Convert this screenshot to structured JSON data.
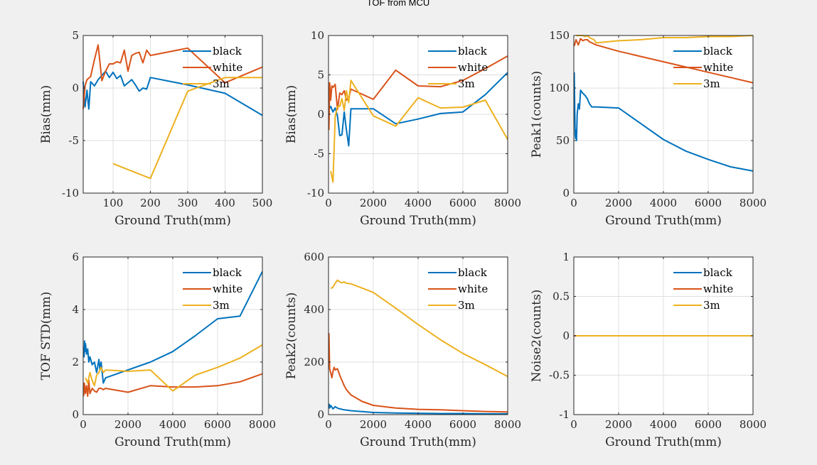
{
  "figure_title": "TOF from MCU",
  "colors": {
    "background": "#f0f0f0",
    "axes": "#ffffff",
    "grid": "#dfdfdf",
    "black": "#0072BD",
    "white": "#D95319",
    "3m": "#EDB120"
  },
  "chart_data": [
    {
      "type": "line",
      "title": "",
      "xlabel": "Ground Truth(mm)",
      "ylabel": "Bias(mm)",
      "xlim": [
        20,
        500
      ],
      "ylim": [
        -10,
        5
      ],
      "xticks": [
        100,
        200,
        300,
        400,
        500
      ],
      "yticks": [
        -10,
        -5,
        0,
        5
      ],
      "grid": true,
      "legend": "top-right",
      "series": [
        {
          "name": "black",
          "x": [
            20,
            25,
            30,
            35,
            40,
            50,
            60,
            70,
            80,
            90,
            100,
            110,
            120,
            130,
            140,
            150,
            160,
            170,
            180,
            190,
            200,
            300,
            400,
            500
          ],
          "y": [
            0.6,
            -1.8,
            -0.2,
            -2.0,
            0.6,
            0.2,
            0.8,
            1.2,
            1.6,
            1.0,
            1.5,
            0.9,
            1.2,
            0.2,
            0.5,
            0.8,
            0.3,
            -0.3,
            0.0,
            -0.1,
            1.0,
            0.3,
            -0.5,
            -2.6
          ]
        },
        {
          "name": "white",
          "x": [
            20,
            25,
            30,
            40,
            50,
            60,
            70,
            80,
            90,
            100,
            110,
            120,
            130,
            140,
            150,
            160,
            170,
            180,
            190,
            200,
            300,
            400,
            500
          ],
          "y": [
            -2.0,
            0.2,
            0.8,
            1.1,
            2.7,
            4.1,
            0.7,
            1.6,
            2.3,
            2.3,
            2.5,
            2.4,
            3.6,
            1.6,
            3.1,
            3.3,
            3.4,
            2.4,
            3.6,
            3.1,
            3.8,
            0.5,
            2.0
          ]
        },
        {
          "name": "3m",
          "x": [
            100,
            200,
            300,
            400,
            500
          ],
          "y": [
            -7.2,
            -8.6,
            -0.3,
            1.0,
            1.0
          ]
        }
      ]
    },
    {
      "type": "line",
      "title": "",
      "xlabel": "Ground Truth(mm)",
      "ylabel": "Bias(mm)",
      "xlim": [
        0,
        8000
      ],
      "ylim": [
        -10,
        10
      ],
      "xticks": [
        0,
        2000,
        4000,
        6000,
        8000
      ],
      "yticks": [
        -10,
        -5,
        0,
        5,
        10
      ],
      "grid": true,
      "legend": "top-right",
      "series": [
        {
          "name": "black",
          "x": [
            20,
            100,
            200,
            300,
            400,
            500,
            600,
            700,
            800,
            900,
            1000,
            2000,
            3000,
            4000,
            5000,
            6000,
            7000,
            8000
          ],
          "y": [
            0.6,
            1.0,
            0.3,
            0.8,
            -0.2,
            -2.7,
            -2.6,
            0.3,
            -2.0,
            -4.0,
            0.7,
            0.7,
            -1.2,
            -0.6,
            0.1,
            0.3,
            2.5,
            5.3
          ]
        },
        {
          "name": "white",
          "x": [
            20,
            50,
            100,
            150,
            200,
            300,
            400,
            500,
            600,
            700,
            800,
            900,
            1000,
            2000,
            3000,
            4000,
            5000,
            6000,
            7000,
            8000
          ],
          "y": [
            -2.0,
            4.0,
            1.8,
            3.6,
            3.4,
            3.8,
            0.6,
            2.7,
            2.5,
            3.0,
            1.8,
            2.0,
            3.2,
            1.9,
            5.6,
            3.6,
            3.5,
            4.3,
            5.8,
            7.4
          ]
        },
        {
          "name": "3m",
          "x": [
            100,
            200,
            300,
            400,
            500,
            600,
            700,
            800,
            900,
            1000,
            2000,
            3000,
            4000,
            5000,
            6000,
            7000,
            8000
          ],
          "y": [
            -7.2,
            -8.6,
            -0.3,
            1.0,
            1.0,
            2.0,
            0.5,
            3.0,
            1.5,
            4.3,
            -0.2,
            -1.5,
            2.1,
            0.8,
            0.9,
            1.8,
            -3.2
          ]
        }
      ]
    },
    {
      "type": "line",
      "title": "",
      "xlabel": "Ground Truth(mm)",
      "ylabel": "Peak1(counts)",
      "xlim": [
        0,
        8000
      ],
      "ylim": [
        0,
        150
      ],
      "xticks": [
        0,
        2000,
        4000,
        6000,
        8000
      ],
      "yticks": [
        0,
        50,
        100,
        150
      ],
      "grid": true,
      "legend": "top-right",
      "series": [
        {
          "name": "black",
          "x": [
            20,
            40,
            60,
            80,
            100,
            120,
            150,
            200,
            250,
            300,
            400,
            500,
            600,
            700,
            800,
            1000,
            2000,
            3000,
            4000,
            5000,
            6000,
            7000,
            8000
          ],
          "y": [
            115,
            80,
            55,
            52,
            60,
            50,
            75,
            85,
            80,
            98,
            95,
            93,
            90,
            85,
            82,
            82,
            81,
            66,
            51,
            40,
            32,
            25,
            21
          ]
        },
        {
          "name": "white",
          "x": [
            20,
            100,
            200,
            300,
            400,
            500,
            600,
            700,
            800,
            1000,
            2000,
            3000,
            4000,
            5000,
            6000,
            7000,
            8000
          ],
          "y": [
            140,
            146,
            141,
            147,
            145,
            146,
            146,
            144,
            143,
            141,
            135,
            130,
            125,
            120,
            115,
            110,
            105
          ]
        },
        {
          "name": "3m",
          "x": [
            100,
            200,
            300,
            400,
            500,
            600,
            700,
            800,
            900,
            1000,
            2000,
            3000,
            4000,
            5000,
            6000,
            7000,
            8000
          ],
          "y": [
            153,
            150,
            153,
            150,
            149,
            150,
            148,
            147,
            146,
            143,
            145,
            146,
            148,
            148,
            149,
            149,
            150
          ]
        }
      ]
    },
    {
      "type": "line",
      "title": "",
      "xlabel": "Ground Truth(mm)",
      "ylabel": "TOF STD(mm)",
      "xlim": [
        0,
        8000
      ],
      "ylim": [
        0,
        6
      ],
      "xticks": [
        0,
        2000,
        4000,
        6000,
        8000
      ],
      "yticks": [
        0,
        2,
        4,
        6
      ],
      "grid": true,
      "legend": "top-right",
      "series": [
        {
          "name": "black",
          "x": [
            20,
            40,
            60,
            80,
            100,
            150,
            200,
            250,
            300,
            400,
            500,
            600,
            700,
            750,
            800,
            900,
            1000,
            2000,
            3000,
            4000,
            5000,
            6000,
            7000,
            8000
          ],
          "y": [
            2.6,
            2.2,
            2.8,
            2.4,
            2.7,
            2.3,
            2.5,
            2.0,
            2.2,
            1.9,
            2.0,
            1.6,
            2.1,
            1.7,
            2.0,
            1.2,
            1.4,
            1.7,
            2.0,
            2.4,
            3.0,
            3.65,
            3.75,
            5.45
          ]
        },
        {
          "name": "white",
          "x": [
            20,
            50,
            100,
            150,
            200,
            250,
            300,
            400,
            500,
            600,
            700,
            800,
            900,
            1000,
            2000,
            3000,
            4000,
            5000,
            6000,
            7000,
            8000
          ],
          "y": [
            0.7,
            1.2,
            0.8,
            1.1,
            0.7,
            1.3,
            0.8,
            1.0,
            0.9,
            0.85,
            1.0,
            1.0,
            0.95,
            1.0,
            0.85,
            1.1,
            1.05,
            1.05,
            1.1,
            1.25,
            1.55
          ]
        },
        {
          "name": "3m",
          "x": [
            100,
            200,
            300,
            400,
            500,
            600,
            700,
            800,
            900,
            1000,
            2000,
            3000,
            4000,
            5000,
            6000,
            7000,
            8000
          ],
          "y": [
            1.4,
            1.2,
            1.6,
            1.3,
            1.1,
            1.5,
            1.6,
            1.8,
            1.6,
            1.7,
            1.65,
            1.7,
            0.9,
            1.5,
            1.8,
            2.15,
            2.65
          ]
        }
      ]
    },
    {
      "type": "line",
      "title": "",
      "xlabel": "Ground Truth(mm)",
      "ylabel": "Peak2(counts)",
      "xlim": [
        0,
        8000
      ],
      "ylim": [
        0,
        600
      ],
      "xticks": [
        0,
        2000,
        4000,
        6000,
        8000
      ],
      "yticks": [
        0,
        200,
        400,
        600
      ],
      "grid": true,
      "legend": "top-right",
      "series": [
        {
          "name": "black",
          "x": [
            20,
            50,
            100,
            200,
            300,
            400,
            500,
            700,
            1000,
            2000,
            3000,
            4000,
            5000,
            6000,
            7000,
            8000
          ],
          "y": [
            42,
            25,
            35,
            22,
            30,
            25,
            22,
            18,
            15,
            8,
            6,
            5,
            4,
            4,
            3,
            3
          ]
        },
        {
          "name": "white",
          "x": [
            20,
            50,
            100,
            150,
            200,
            250,
            300,
            400,
            500,
            600,
            700,
            800,
            1000,
            1500,
            2000,
            3000,
            4000,
            5000,
            6000,
            7000,
            8000
          ],
          "y": [
            310,
            175,
            160,
            140,
            165,
            180,
            170,
            175,
            150,
            130,
            110,
            95,
            75,
            50,
            35,
            25,
            20,
            18,
            15,
            12,
            10
          ]
        },
        {
          "name": "3m",
          "x": [
            100,
            200,
            300,
            400,
            500,
            600,
            700,
            800,
            1000,
            2000,
            3000,
            4000,
            5000,
            6000,
            7000,
            8000
          ],
          "y": [
            480,
            485,
            500,
            512,
            505,
            502,
            505,
            500,
            498,
            465,
            405,
            343,
            285,
            233,
            190,
            145
          ]
        }
      ]
    },
    {
      "type": "line",
      "title": "",
      "xlabel": "Ground Truth(mm)",
      "ylabel": "Noise2(counts)",
      "xlim": [
        0,
        8000
      ],
      "ylim": [
        -1,
        1
      ],
      "xticks": [
        0,
        2000,
        4000,
        6000,
        8000
      ],
      "yticks": [
        -1,
        -0.5,
        0,
        0.5,
        1
      ],
      "grid": true,
      "legend": "top-right",
      "series": [
        {
          "name": "black",
          "x": [
            20,
            8000
          ],
          "y": [
            0,
            0
          ]
        },
        {
          "name": "white",
          "x": [
            20,
            8000
          ],
          "y": [
            0,
            0
          ]
        },
        {
          "name": "3m",
          "x": [
            100,
            8000
          ],
          "y": [
            0,
            0
          ]
        }
      ]
    }
  ]
}
